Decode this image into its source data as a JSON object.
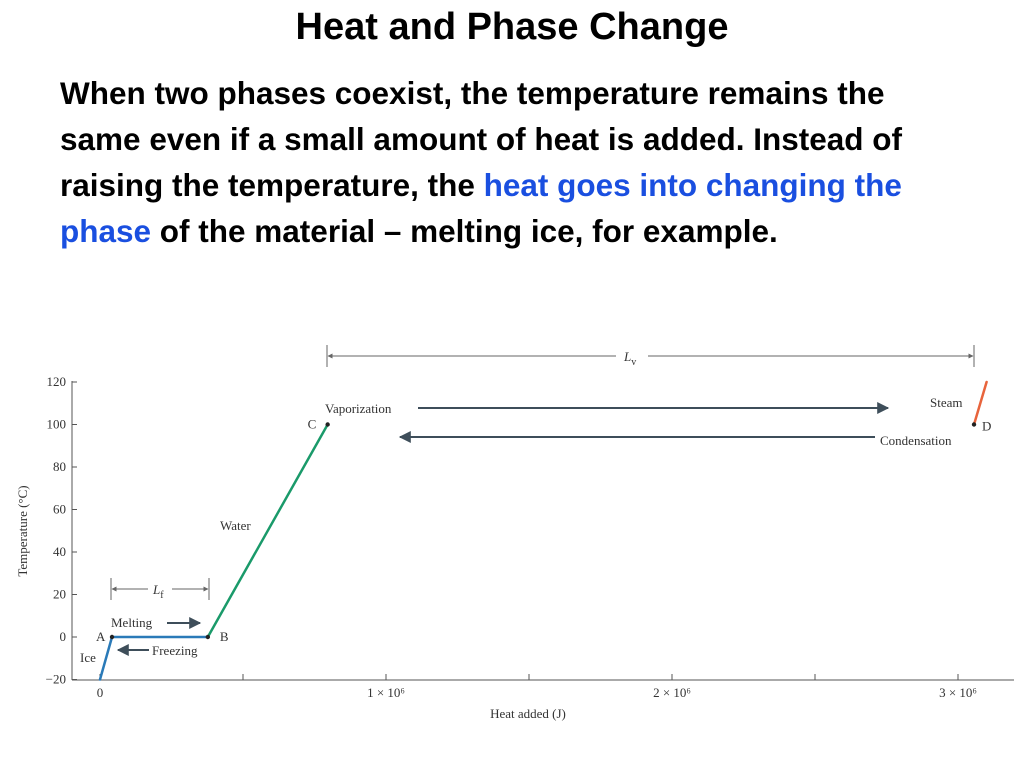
{
  "slide": {
    "title": "Heat and Phase Change",
    "paragraph": {
      "before": "When two phases coexist, the temperature remains the same even if a small amount of heat is added. Instead of raising the temperature, the ",
      "highlight": "heat goes into changing the phase",
      "after": " of the material – melting ice, for example."
    },
    "highlight_color": "#1a4fe0"
  },
  "chart_data": {
    "type": "line",
    "xlabel": "Heat added (J)",
    "ylabel": "Temperature (°C)",
    "xlim": [
      -20000,
      3200000
    ],
    "ylim": [
      -20,
      120
    ],
    "y_ticks": [
      -20,
      0,
      20,
      40,
      60,
      80,
      100,
      120
    ],
    "x_ticks": [
      {
        "value": 0,
        "label": "0"
      },
      {
        "value": 500000,
        "label": ""
      },
      {
        "value": 1000000,
        "label": "1 × 10⁶"
      },
      {
        "value": 1500000,
        "label": ""
      },
      {
        "value": 2000000,
        "label": "2 × 10⁶"
      },
      {
        "value": 2500000,
        "label": ""
      },
      {
        "value": 3000000,
        "label": "3 × 10⁶"
      }
    ],
    "segments": [
      {
        "label": "Ice",
        "color": "#2a7ab8",
        "points": [
          [
            0,
            -20
          ],
          [
            42000,
            0
          ]
        ]
      },
      {
        "label": "Melting",
        "color": "#2a7ab8",
        "points": [
          [
            42000,
            0
          ],
          [
            377000,
            0
          ]
        ]
      },
      {
        "label": "Water",
        "color": "#1a9a6a",
        "points": [
          [
            377000,
            0
          ],
          [
            796000,
            100
          ]
        ]
      },
      {
        "label": "Vaporization",
        "color_start": "#1a9a6a",
        "color_end": "#e8643c",
        "points": [
          [
            796000,
            100
          ],
          [
            3056000,
            100
          ]
        ]
      },
      {
        "label": "Steam",
        "color": "#e8643c",
        "points": [
          [
            3056000,
            100
          ],
          [
            3100000,
            120
          ]
        ]
      }
    ],
    "points": [
      {
        "label": "A",
        "x": 42000,
        "y": 0
      },
      {
        "label": "B",
        "x": 377000,
        "y": 0
      },
      {
        "label": "C",
        "x": 796000,
        "y": 100
      },
      {
        "label": "D",
        "x": 3056000,
        "y": 100
      }
    ],
    "annotations": {
      "melting": "Melting",
      "freezing": "Freezing",
      "vaporization": "Vaporization",
      "condensation": "Condensation",
      "water": "Water",
      "ice": "Ice",
      "steam": "Steam",
      "lf": "L",
      "lf_sub": "f",
      "lv": "L",
      "lv_sub": "v"
    },
    "latent_spans": [
      {
        "name": "Lf",
        "x_start": 42000,
        "x_end": 377000
      },
      {
        "name": "Lv",
        "x_start": 796000,
        "x_end": 3056000
      }
    ],
    "grid": false,
    "legend": "none"
  }
}
